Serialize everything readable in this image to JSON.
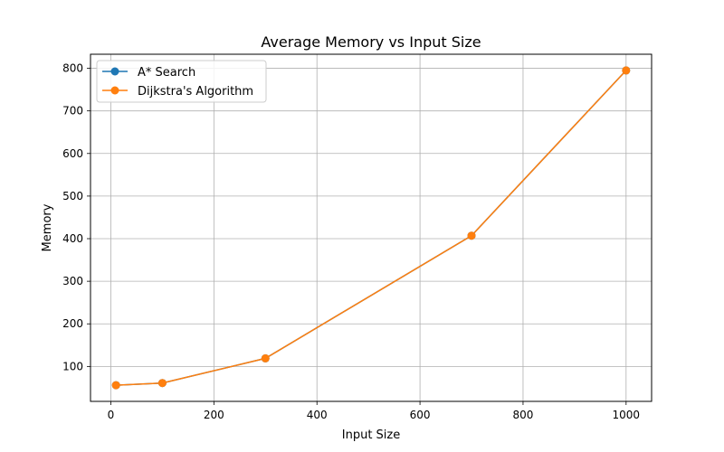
{
  "chart_data": {
    "type": "line",
    "title": "Average Memory vs Input Size",
    "xlabel": "Input Size",
    "ylabel": "Memory",
    "x": [
      10,
      100,
      300,
      700,
      1000
    ],
    "series": [
      {
        "name": "A* Search",
        "values": [
          56,
          61,
          119,
          407,
          795
        ],
        "color": "#1f77b4"
      },
      {
        "name": "Dijkstra's Algorithm",
        "values": [
          56,
          61,
          119,
          407,
          795
        ],
        "color": "#ff7f0e"
      }
    ],
    "xlim": [
      -39.5,
      1049.5
    ],
    "ylim": [
      18,
      833
    ],
    "xticks": [
      0,
      200,
      400,
      600,
      800,
      1000
    ],
    "yticks": [
      100,
      200,
      300,
      400,
      500,
      600,
      700,
      800
    ],
    "grid": true,
    "legend_position": "top-left"
  }
}
